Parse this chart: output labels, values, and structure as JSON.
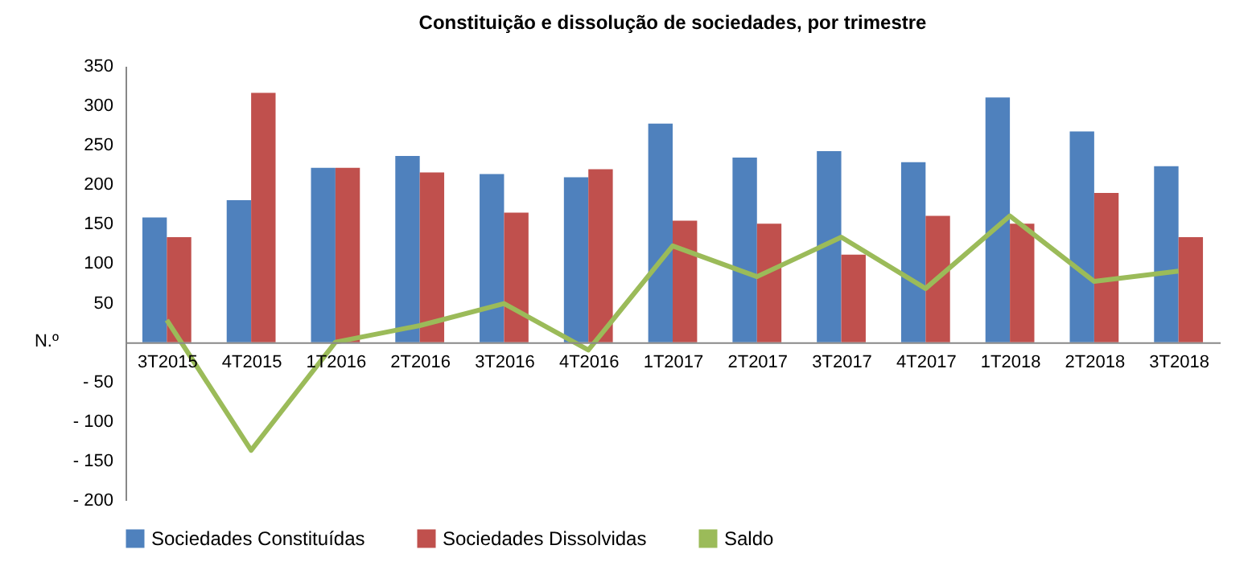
{
  "chart_data": {
    "type": "bar",
    "title": "Constituição  e dissolução  de sociedades, por trimestre",
    "ylabel": "N.º",
    "categories": [
      "3T2015",
      "4T2015",
      "1T2016",
      "2T2016",
      "3T2016",
      "4T2016",
      "1T2017",
      "2T2017",
      "3T2017",
      "4T2017",
      "1T2018",
      "2T2018",
      "3T2018"
    ],
    "series": [
      {
        "name": "Sociedades Constituídas",
        "color": "#4f81bd",
        "values": [
          158,
          180,
          221,
          236,
          213,
          209,
          277,
          234,
          242,
          228,
          310,
          267,
          223
        ]
      },
      {
        "name": "Sociedades Dissolvidas",
        "color": "#c0504d",
        "values": [
          133,
          316,
          221,
          215,
          164,
          219,
          154,
          150,
          111,
          160,
          150,
          189,
          133
        ]
      },
      {
        "name": "Saldo",
        "type": "line",
        "color": "#9bbb59",
        "values": [
          28,
          -137,
          0,
          21,
          49,
          -10,
          122,
          83,
          133,
          68,
          160,
          77,
          90
        ]
      }
    ],
    "ylim": [
      -200,
      350
    ],
    "yticks": [
      {
        "value": -200,
        "label": "- 200"
      },
      {
        "value": -150,
        "label": "- 150"
      },
      {
        "value": -100,
        "label": "- 100"
      },
      {
        "value": -50,
        "label": "- 50"
      },
      {
        "value": 0,
        "label": null
      },
      50,
      100,
      150,
      200,
      250,
      300,
      350
    ],
    "grid": false,
    "legend": "bottom",
    "marker": "none",
    "line_style": "solid"
  }
}
